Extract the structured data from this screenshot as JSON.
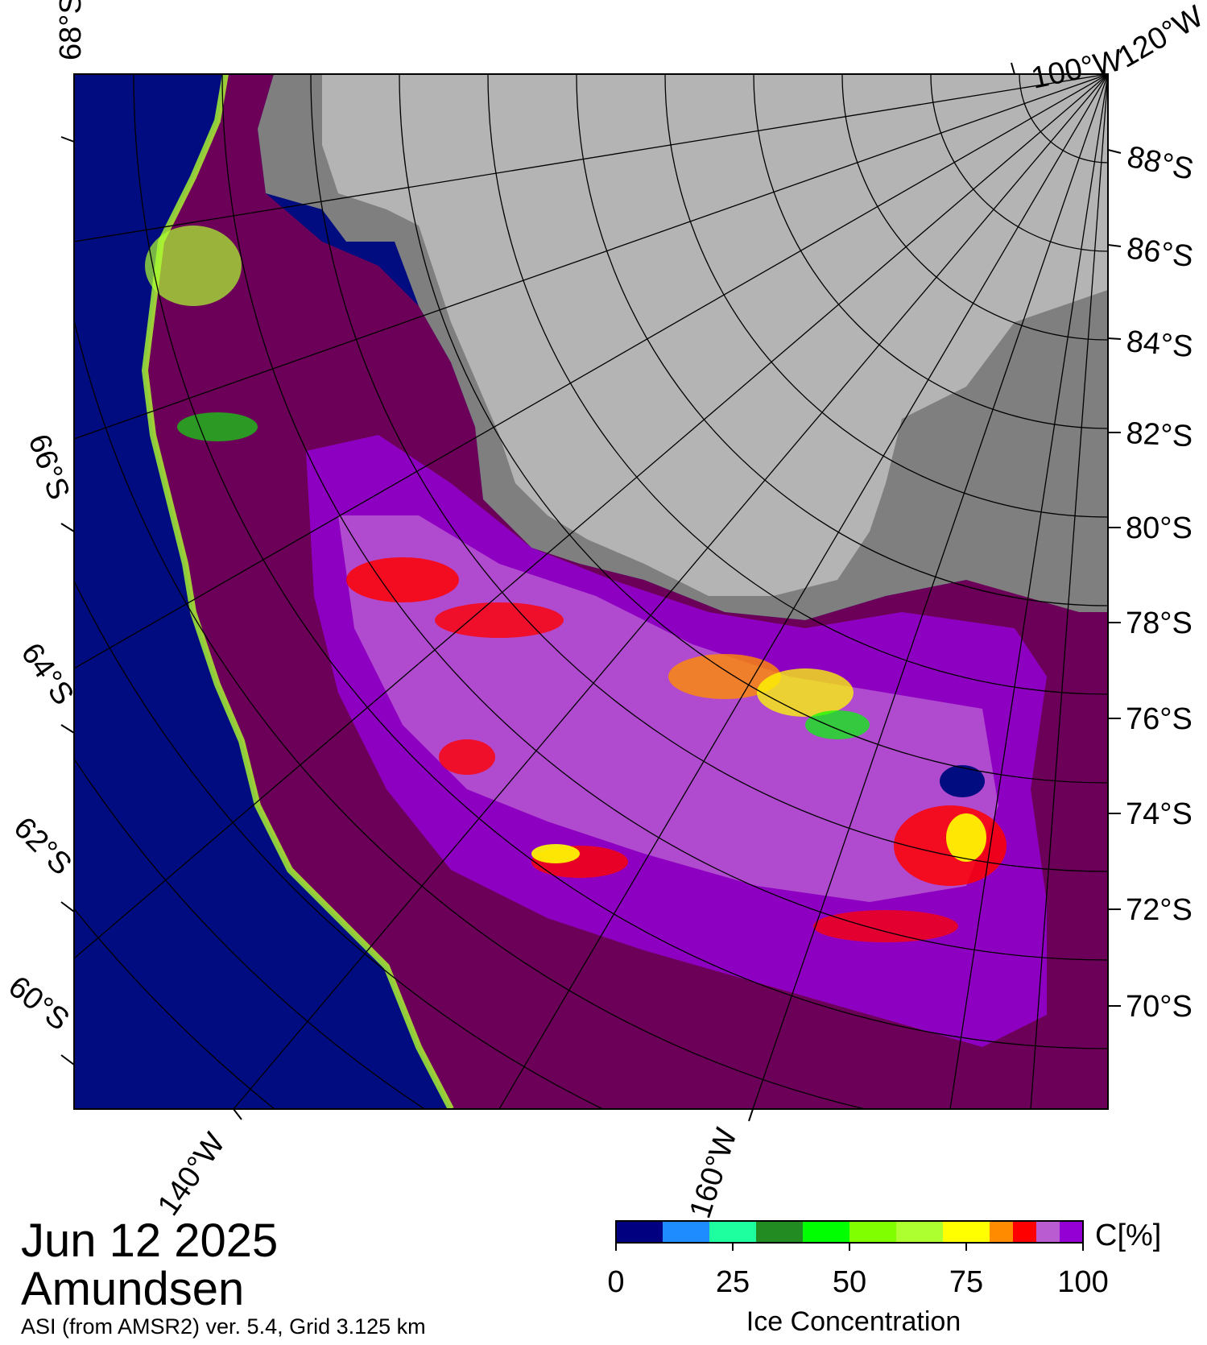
{
  "map": {
    "date": "Jun 12 2025",
    "region": "Amundsen",
    "product": "ASI (from AMSR2) ver. 5.4,  Grid 3.125 km",
    "latitude_labels_right": [
      "88°S",
      "86°S",
      "84°S",
      "82°S",
      "80°S",
      "78°S",
      "76°S",
      "74°S",
      "72°S",
      "70°S"
    ],
    "latitude_labels_left": [
      "68°S",
      "66°S",
      "64°S",
      "62°S",
      "60°S"
    ],
    "longitude_labels_bottom": [
      "140°W",
      "160°W"
    ],
    "longitude_labels_top": [
      "100°W",
      "120°W"
    ],
    "colors": {
      "open_water": "#000c80",
      "land": "#b4b4b4",
      "ice_shelf": "#7f7f7f",
      "ice_high": "#6c0058"
    }
  },
  "colorbar": {
    "title": "Ice Concentration",
    "unit": "C[%]",
    "ticks": [
      "0",
      "25",
      "50",
      "75",
      "100"
    ],
    "colors": [
      "#000080",
      "#1e8cff",
      "#1effa0",
      "#228b22",
      "#00ff00",
      "#7fff00",
      "#adff2f",
      "#ffff00",
      "#ff8c00",
      "#ff0000",
      "#b95cd2",
      "#9400d3"
    ]
  }
}
